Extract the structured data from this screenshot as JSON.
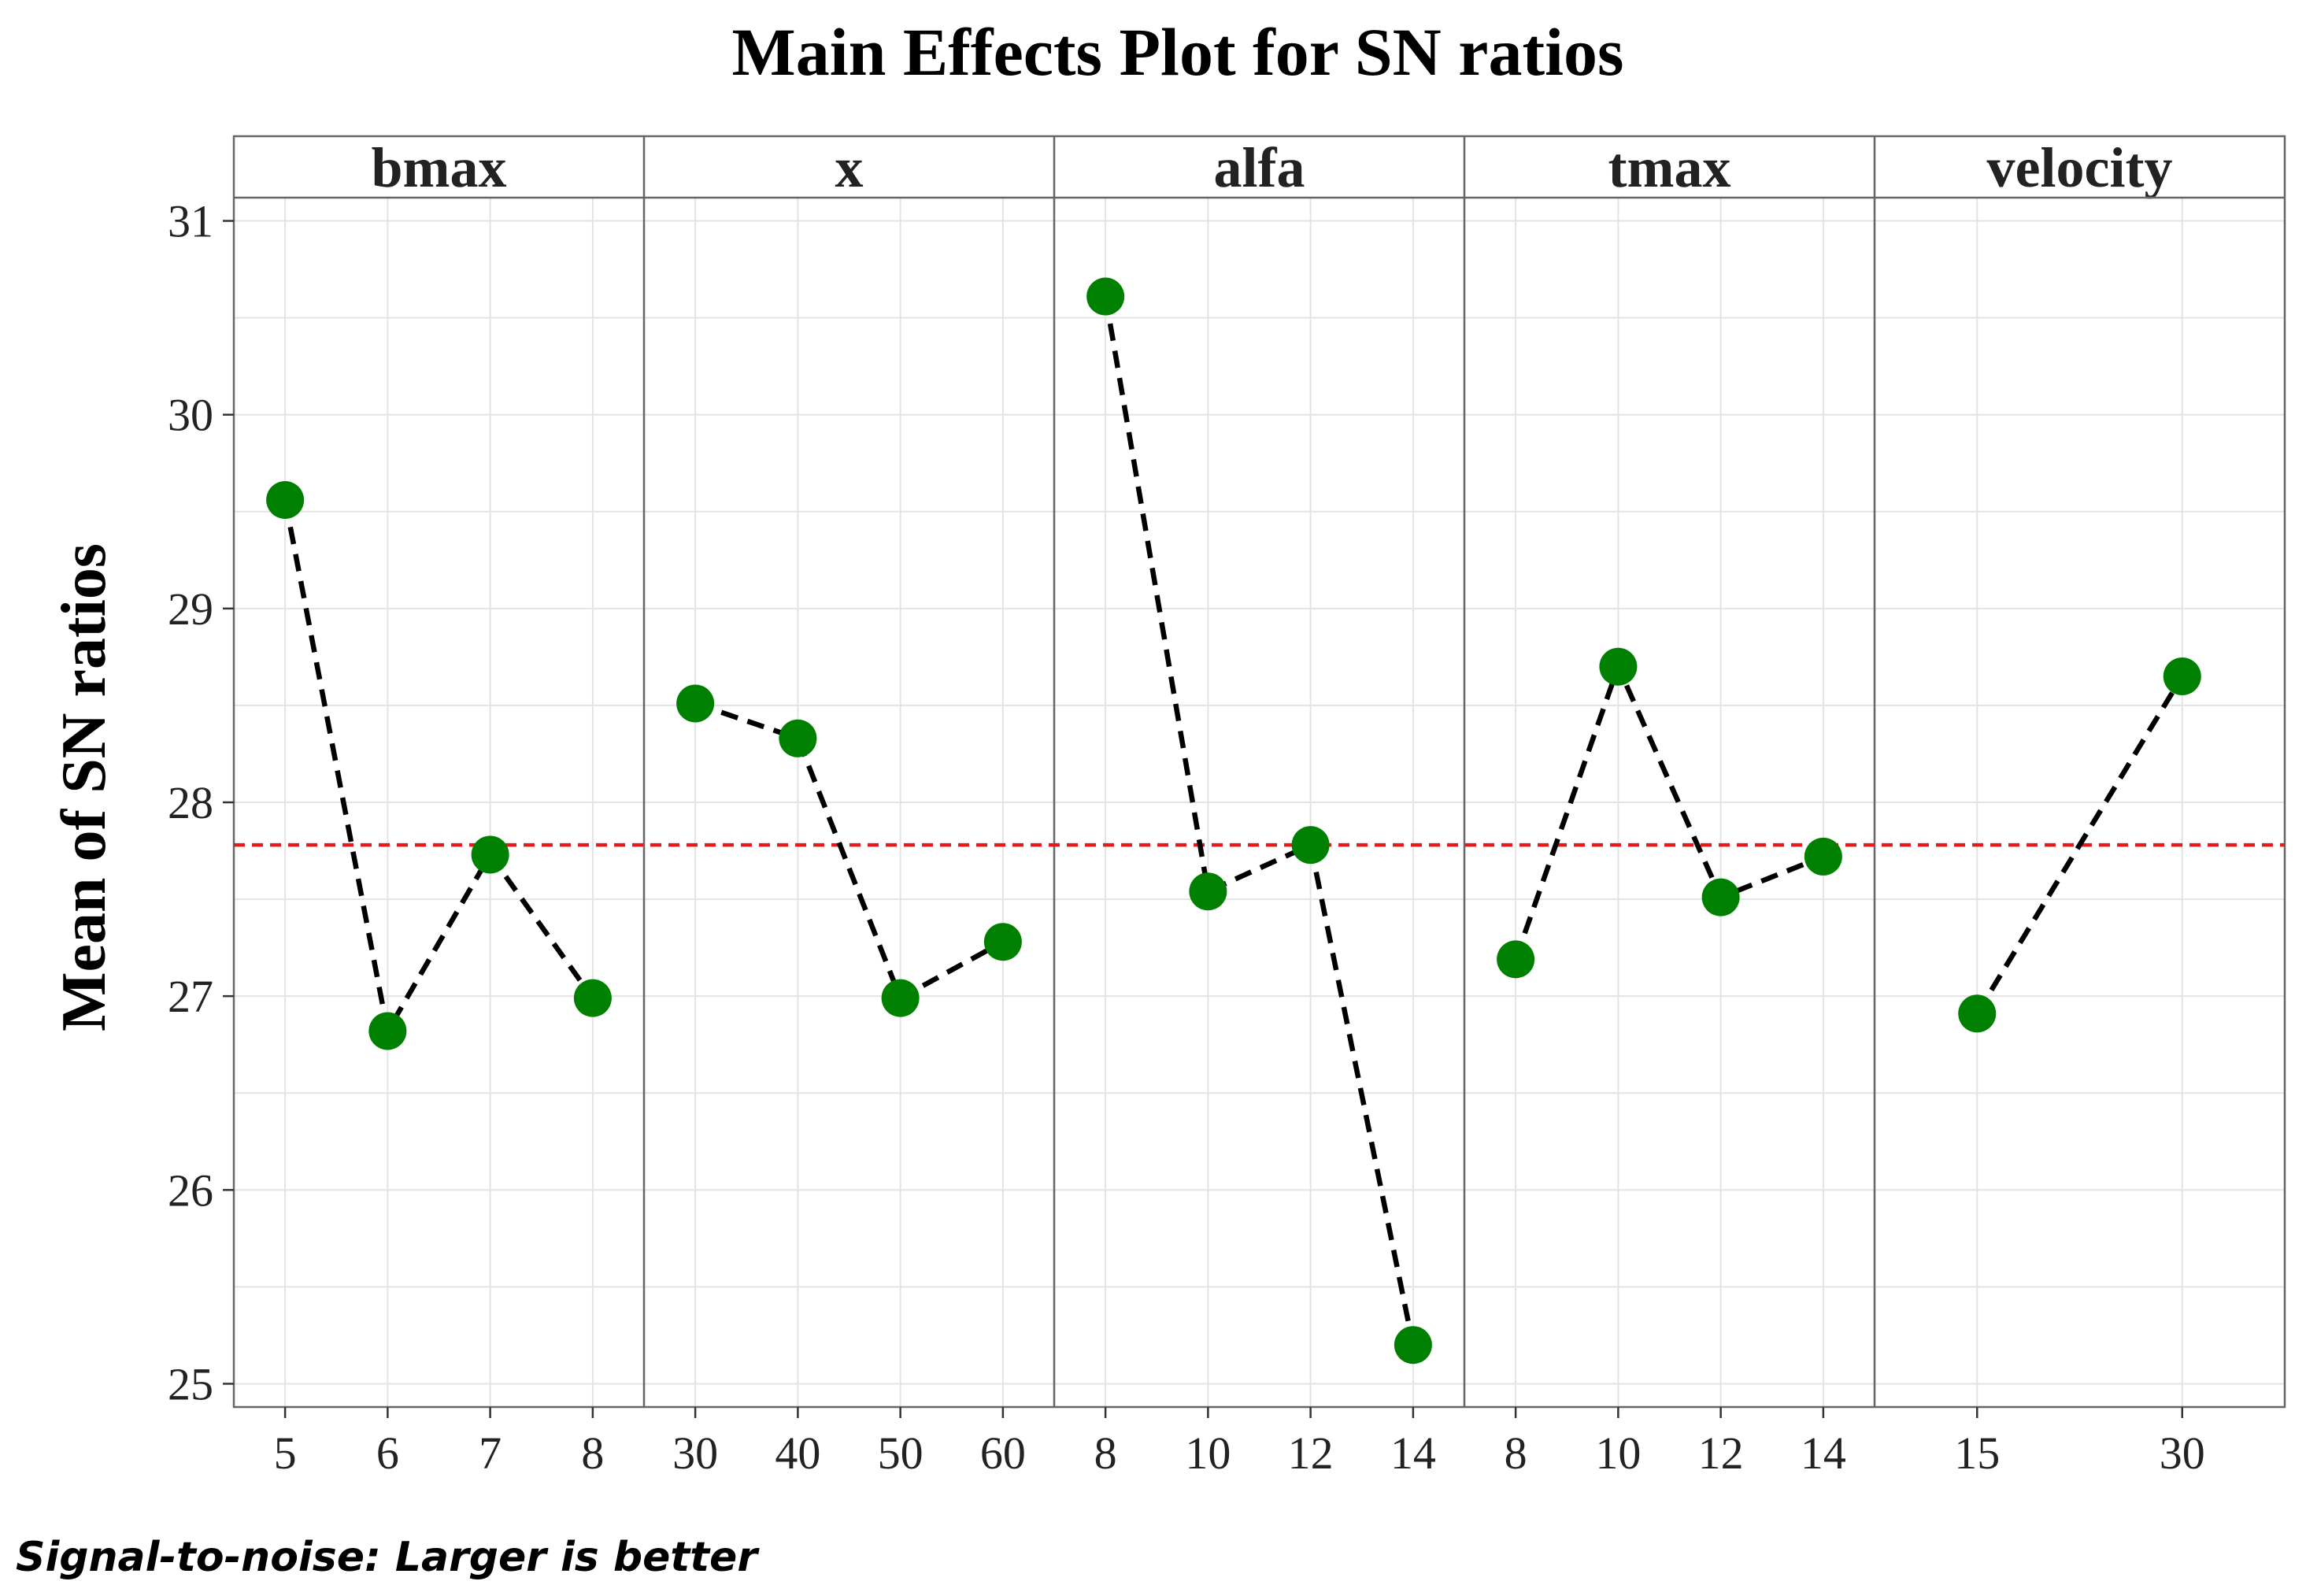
{
  "chart_data": {
    "type": "line",
    "title": "Main Effects Plot for SN ratios",
    "ylabel": "Mean of SN ratios",
    "footnote": "Signal-to-noise: Larger is better",
    "ylim": [
      24.88,
      31.12
    ],
    "yticks": [
      25,
      26,
      27,
      28,
      29,
      30,
      31
    ],
    "grid": true,
    "reference_line": {
      "value": 27.78,
      "color": "#e41a1c",
      "style": "dashed"
    },
    "series_style": {
      "line_color": "#000000",
      "line_style": "dashed",
      "point_color": "#008000"
    },
    "panels": [
      {
        "name": "bmax",
        "categories": [
          "5",
          "6",
          "7",
          "8"
        ],
        "values": [
          29.56,
          26.82,
          27.73,
          26.99
        ]
      },
      {
        "name": "x",
        "categories": [
          "30",
          "40",
          "50",
          "60"
        ],
        "values": [
          28.51,
          28.33,
          26.99,
          27.28
        ]
      },
      {
        "name": "alfa",
        "categories": [
          "8",
          "10",
          "12",
          "14"
        ],
        "values": [
          30.61,
          27.54,
          27.78,
          25.2
        ]
      },
      {
        "name": "tmax",
        "categories": [
          "8",
          "10",
          "12",
          "14"
        ],
        "values": [
          27.19,
          28.7,
          27.51,
          27.72
        ]
      },
      {
        "name": "velocity",
        "categories": [
          "15",
          "30"
        ],
        "values": [
          26.91,
          28.65
        ]
      }
    ]
  }
}
